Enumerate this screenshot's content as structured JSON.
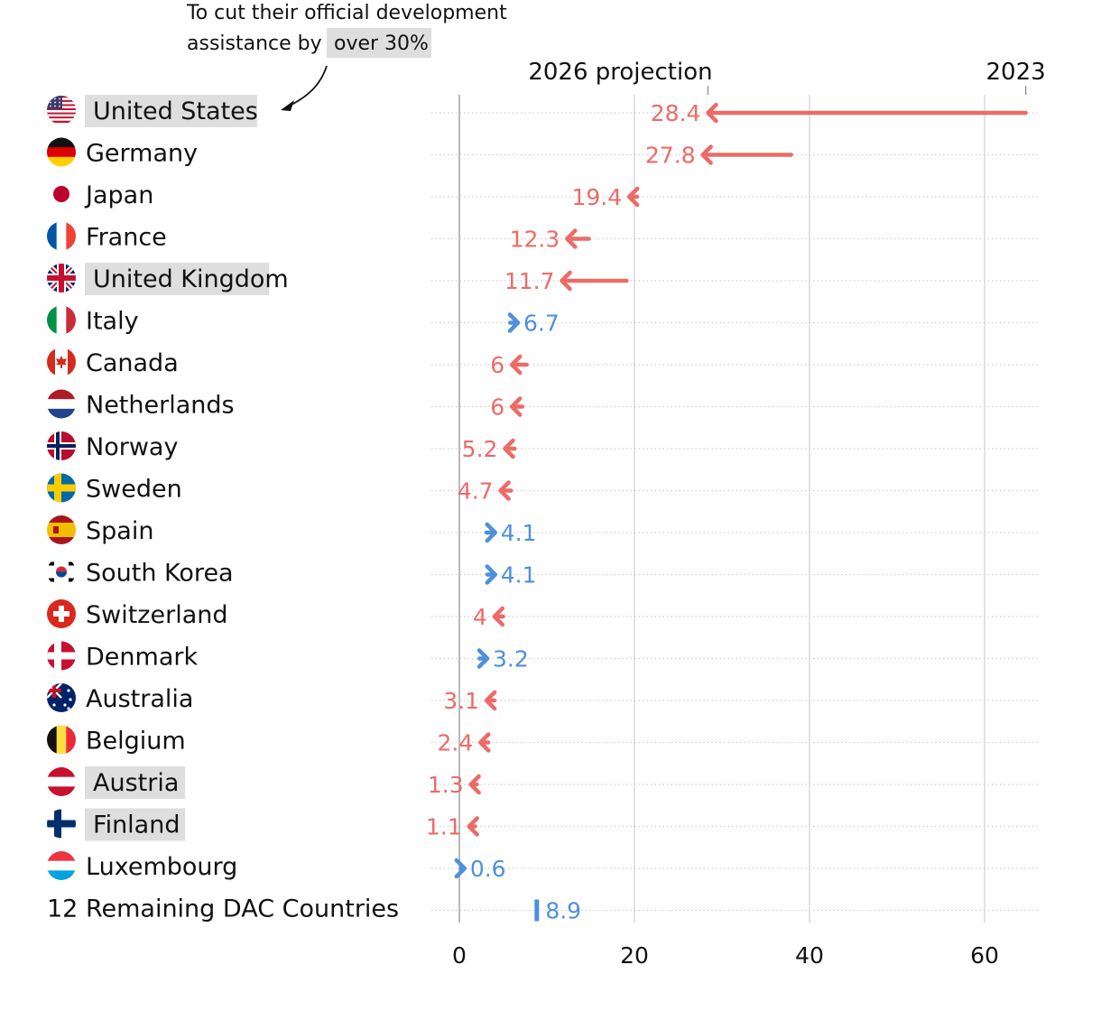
{
  "chart_data": {
    "type": "arrow-dot",
    "title": "",
    "annotation": {
      "line1": "To cut their official development",
      "line2_prefix": "assistance by",
      "line2_highlight": "over 30%"
    },
    "headers": {
      "projection": "2026 projection",
      "baseline": "2023"
    },
    "xlim": [
      0,
      65
    ],
    "xticks": [
      0,
      20,
      40,
      60
    ],
    "xtick_labels": [
      "0",
      "20",
      "40",
      "60"
    ],
    "colors": {
      "decrease": "#ec6b67",
      "increase": "#4f90db",
      "grid": "#d0d0d0",
      "zero": "#b8b8b8",
      "highlight": "#dedede"
    },
    "rows": [
      {
        "country": "United States",
        "flag": "us-flag-icon",
        "label": "28.4",
        "v2026": 28.4,
        "v2023": 64.7,
        "highlight": true
      },
      {
        "country": "Germany",
        "flag": "de-flag-icon",
        "label": "27.8",
        "v2026": 27.8,
        "v2023": 37.9,
        "highlight": false
      },
      {
        "country": "Japan",
        "flag": "jp-flag-icon",
        "label": "19.4",
        "v2026": 19.4,
        "v2023": 20.3,
        "highlight": false
      },
      {
        "country": "France",
        "flag": "fr-flag-icon",
        "label": "12.3",
        "v2026": 12.3,
        "v2023": 14.8,
        "highlight": false
      },
      {
        "country": "United Kingdom",
        "flag": "gb-flag-icon",
        "label": "11.7",
        "v2026": 11.7,
        "v2023": 19.1,
        "highlight": true
      },
      {
        "country": "Italy",
        "flag": "it-flag-icon",
        "label": "6.7",
        "v2026": 6.7,
        "v2023": 5.8,
        "highlight": false
      },
      {
        "country": "Canada",
        "flag": "ca-flag-icon",
        "label": "6",
        "v2026": 6.0,
        "v2023": 7.7,
        "highlight": false
      },
      {
        "country": "Netherlands",
        "flag": "nl-flag-icon",
        "label": "6",
        "v2026": 6.0,
        "v2023": 7.2,
        "highlight": false
      },
      {
        "country": "Norway",
        "flag": "no-flag-icon",
        "label": "5.2",
        "v2026": 5.2,
        "v2023": 6.3,
        "highlight": false
      },
      {
        "country": "Sweden",
        "flag": "se-flag-icon",
        "label": "4.7",
        "v2026": 4.7,
        "v2023": 5.9,
        "highlight": false
      },
      {
        "country": "Spain",
        "flag": "es-flag-icon",
        "label": "4.1",
        "v2026": 4.1,
        "v2023": 3.1,
        "highlight": false
      },
      {
        "country": "South Korea",
        "flag": "kr-flag-icon",
        "label": "4.1",
        "v2026": 4.1,
        "v2023": 3.2,
        "highlight": false
      },
      {
        "country": "Switzerland",
        "flag": "ch-flag-icon",
        "label": "4",
        "v2026": 4.0,
        "v2023": 5.0,
        "highlight": false
      },
      {
        "country": "Denmark",
        "flag": "dk-flag-icon",
        "label": "3.2",
        "v2026": 3.2,
        "v2023": 2.3,
        "highlight": false
      },
      {
        "country": "Australia",
        "flag": "au-flag-icon",
        "label": "3.1",
        "v2026": 3.1,
        "v2023": 4.0,
        "highlight": false
      },
      {
        "country": "Belgium",
        "flag": "be-flag-icon",
        "label": "2.4",
        "v2026": 2.4,
        "v2023": 3.3,
        "highlight": false
      },
      {
        "country": "Austria",
        "flag": "at-flag-icon",
        "label": "1.3",
        "v2026": 1.3,
        "v2023": 2.0,
        "highlight": true
      },
      {
        "country": "Finland",
        "flag": "fi-flag-icon",
        "label": "1.1",
        "v2026": 1.1,
        "v2023": 1.8,
        "highlight": true
      },
      {
        "country": "Luxembourg",
        "flag": "lu-flag-icon",
        "label": "0.6",
        "v2026": 0.6,
        "v2023": 0.5,
        "highlight": false
      },
      {
        "country": "12 Remaining DAC Countries",
        "flag": "",
        "label": "8.9",
        "v2026": 8.9,
        "v2023": 8.9,
        "highlight": false
      }
    ]
  }
}
